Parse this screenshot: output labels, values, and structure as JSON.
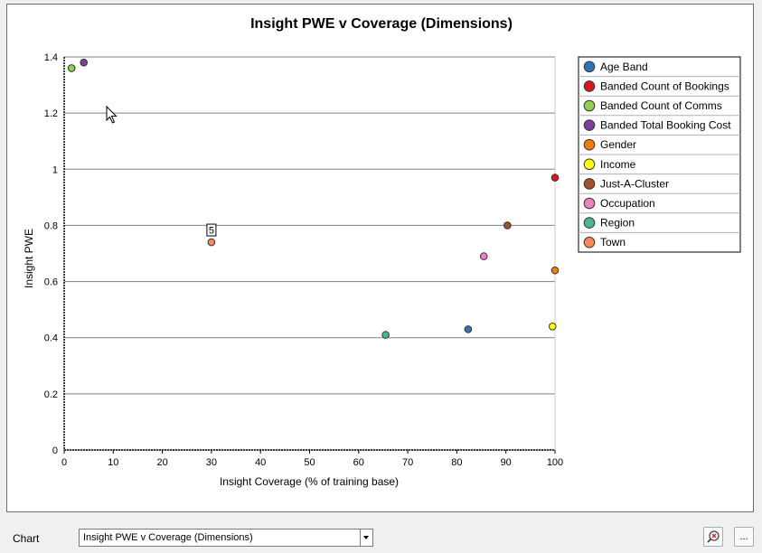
{
  "chart_data": {
    "type": "scatter",
    "title": "Insight PWE v Coverage (Dimensions)",
    "xlabel": "Insight Coverage (% of training base)",
    "ylabel": "Insight PWE",
    "xlim": [
      0,
      100
    ],
    "ylim": [
      0,
      1.4
    ],
    "x_ticks": [
      "0",
      "10",
      "20",
      "30",
      "40",
      "50",
      "60",
      "70",
      "80",
      "90",
      "100"
    ],
    "y_ticks": [
      "0",
      "0.2",
      "0.4",
      "0.6",
      "0.8",
      "1",
      "1.2",
      "1.4"
    ],
    "grid": "horizontal",
    "legend_position": "top-right",
    "series": [
      {
        "name": "Age Band",
        "color": "#2e75b6",
        "x": 82.3,
        "y": 0.43
      },
      {
        "name": "Banded Count of Bookings",
        "color": "#d7191c",
        "x": 100,
        "y": 0.97
      },
      {
        "name": "Banded Count of Comms",
        "color": "#92d050",
        "x": 1.5,
        "y": 1.36
      },
      {
        "name": "Banded Total Booking Cost",
        "color": "#7e3f9a",
        "x": 4.0,
        "y": 1.38
      },
      {
        "name": "Gender",
        "color": "#f07f09",
        "x": 100,
        "y": 0.64
      },
      {
        "name": "Income",
        "color": "#ffff00",
        "x": 99.5,
        "y": 0.44
      },
      {
        "name": "Just-A-Cluster",
        "color": "#a0522d",
        "x": 90.3,
        "y": 0.8
      },
      {
        "name": "Occupation",
        "color": "#f07fbf",
        "x": 85.5,
        "y": 0.69
      },
      {
        "name": "Region",
        "color": "#4fb58f",
        "x": 65.5,
        "y": 0.41
      },
      {
        "name": "Town",
        "color": "#f4875f",
        "x": 30.0,
        "y": 0.74,
        "point_label": "5"
      }
    ]
  },
  "controls": {
    "chart_label": "Chart",
    "chart_select_value": "Insight PWE v Coverage (Dimensions)",
    "zoom_icon": "zoom-reset-icon",
    "more_label": "..."
  }
}
